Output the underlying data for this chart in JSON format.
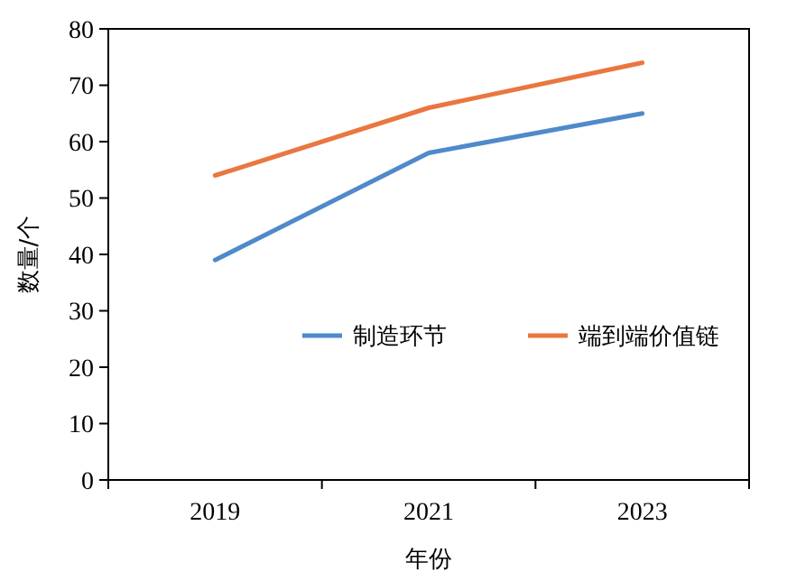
{
  "chart_data": {
    "type": "line",
    "xlabel": "年份",
    "ylabel": "数量/个",
    "categories": [
      "2019",
      "2021",
      "2023"
    ],
    "series": [
      {
        "name": "制造环节",
        "color": "#4f8ac9",
        "values": [
          39,
          58,
          65
        ]
      },
      {
        "name": "端到端价值链",
        "color": "#e9773f",
        "values": [
          54,
          66,
          74
        ]
      }
    ],
    "ylim": [
      0,
      80
    ],
    "yticks": [
      0,
      10,
      20,
      30,
      40,
      50,
      60,
      70,
      80
    ],
    "grid": false,
    "legend": "center",
    "marker": "none",
    "line_style": "solid"
  }
}
